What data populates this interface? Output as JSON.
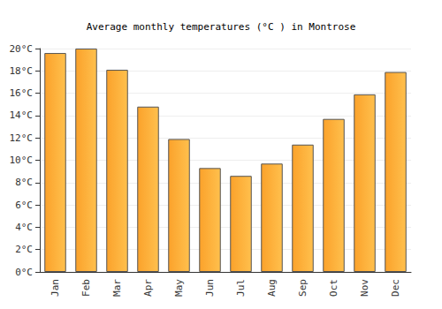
{
  "chart_data": {
    "type": "bar",
    "title": "Average monthly temperatures (°C ) in Montrose",
    "categories": [
      "Jan",
      "Feb",
      "Mar",
      "Apr",
      "May",
      "Jun",
      "Jul",
      "Aug",
      "Sep",
      "Oct",
      "Nov",
      "Dec"
    ],
    "values": [
      19.6,
      20.0,
      18.1,
      14.8,
      11.9,
      9.3,
      8.6,
      9.7,
      11.4,
      13.7,
      15.9,
      17.9
    ],
    "color": "#fba22b",
    "ylim": [
      0,
      20
    ],
    "yticks": [
      {
        "value": 0,
        "label": "0°C"
      },
      {
        "value": 2,
        "label": "2°C"
      },
      {
        "value": 4,
        "label": "4°C"
      },
      {
        "value": 6,
        "label": "6°C"
      },
      {
        "value": 8,
        "label": "8°C"
      },
      {
        "value": 10,
        "label": "10°C"
      },
      {
        "value": 12,
        "label": "12°C"
      },
      {
        "value": 14,
        "label": "14°C"
      },
      {
        "value": 16,
        "label": "16°C"
      },
      {
        "value": 18,
        "label": "18°C"
      },
      {
        "value": 20,
        "label": "20°C"
      }
    ],
    "grid": true
  }
}
